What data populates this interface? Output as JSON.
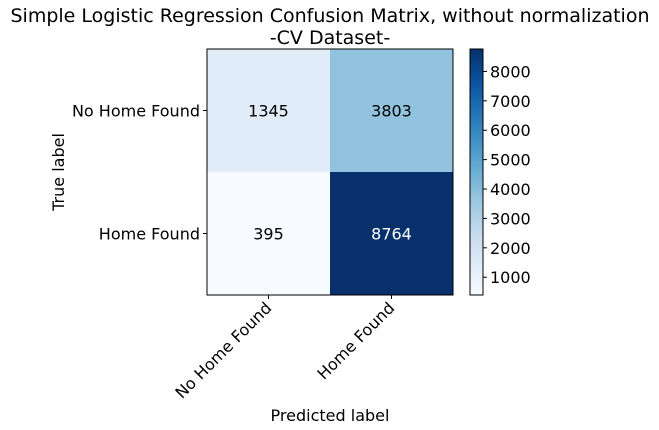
{
  "chart_data": {
    "type": "heatmap",
    "title_line1": "Simple Logistic Regression Confusion Matrix, without normalization",
    "title_line2": "-CV Dataset-",
    "xlabel": "Predicted label",
    "ylabel": "True label",
    "x_categories": [
      "No Home Found",
      "Home Found"
    ],
    "y_categories": [
      "No Home Found",
      "Home Found"
    ],
    "values": [
      [
        1345,
        3803
      ],
      [
        395,
        8764
      ]
    ],
    "colormap": "Blues",
    "color_range": [
      395,
      8764
    ],
    "colorbar_ticks": [
      1000,
      2000,
      3000,
      4000,
      5000,
      6000,
      7000,
      8000
    ],
    "text_color_dark": "#000000",
    "text_color_light": "#ffffff"
  }
}
